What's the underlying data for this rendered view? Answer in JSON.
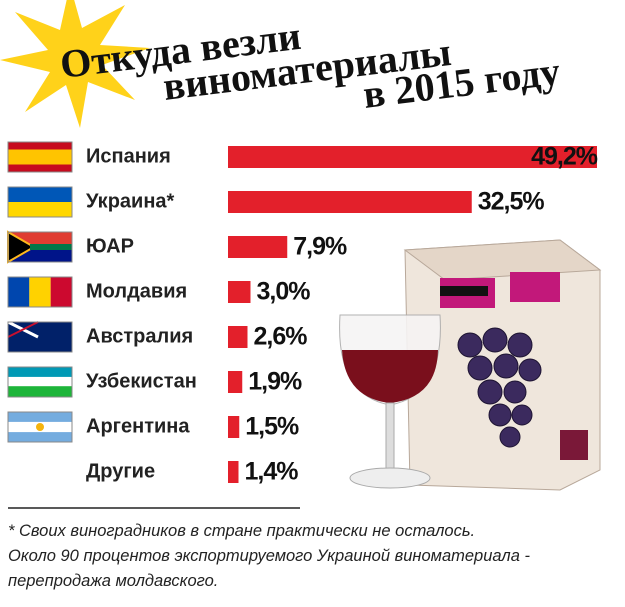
{
  "chart_data": {
    "type": "bar",
    "title": [
      "Откуда везли",
      "виноматериалы",
      "в 2015 году"
    ],
    "categories": [
      "Испания",
      "Украина*",
      "ЮАР",
      "Молдавия",
      "Австралия",
      "Узбекистан",
      "Аргентина",
      "Другие"
    ],
    "values": [
      49.2,
      32.5,
      7.9,
      3.0,
      2.6,
      1.9,
      1.5,
      1.4
    ],
    "value_labels": [
      "49,2%",
      "32,5%",
      "7,9%",
      "3,0%",
      "2,6%",
      "1,9%",
      "1,5%",
      "1,4%"
    ],
    "color": "#e3202b",
    "note": [
      "* Своих виноградников в стране практически не осталось.",
      "Около 90 процентов экспортируемого Украиной виноматериала -",
      "перепродажа молдавского."
    ]
  }
}
